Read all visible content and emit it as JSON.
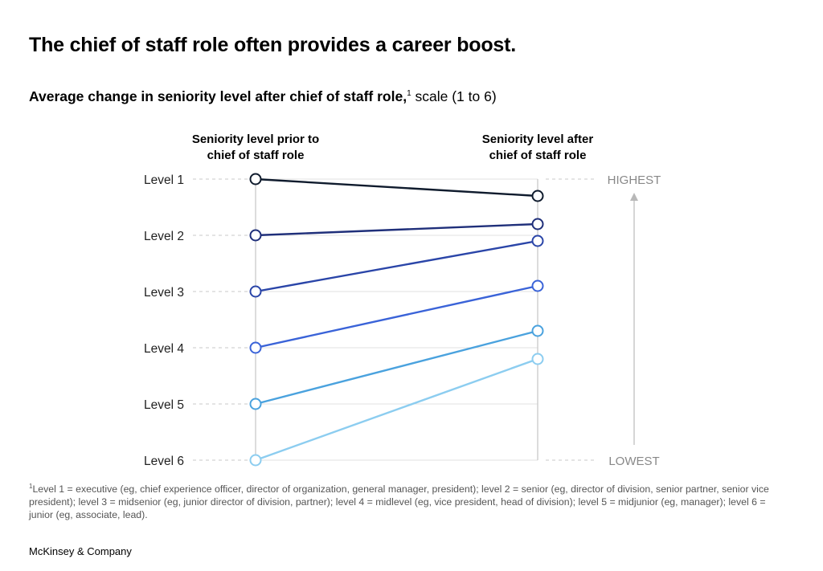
{
  "headline": "The chief of staff role often provides a career boost.",
  "subtitle": {
    "bold": "Average change in seniority level after chief of staff role,",
    "sup": "1",
    "light": " scale (1 to 6)"
  },
  "footnote": {
    "sup": "1",
    "text": "Level 1 = executive (eg, chief experience officer, director of organization, general manager, president); level 2 = senior (eg, director of division, senior partner, senior vice president); level 3 = midsenior (eg, junior director of division, partner); level 4 = midlevel (eg, vice president, head of division); level 5 = midjunior (eg, manager); level 6 = junior (eg, associate, lead)."
  },
  "brand": "McKinsey & Company",
  "chart_data": {
    "type": "line",
    "title": "Average change in seniority level after chief of staff role",
    "x": [
      "Seniority level prior to chief of staff role",
      "Seniority level after chief of staff role"
    ],
    "column_headers": {
      "before": [
        "Seniority level prior to",
        "chief of staff role"
      ],
      "after": [
        "Seniority level after",
        "chief of staff role"
      ]
    },
    "y_tick_labels": [
      "Level 1",
      "Level 2",
      "Level 3",
      "Level 4",
      "Level 5",
      "Level 6"
    ],
    "ylim": [
      1,
      6
    ],
    "y_inverted": true,
    "scale_labels": {
      "top": "HIGHEST",
      "bottom": "LOWEST"
    },
    "grid": true,
    "series": [
      {
        "values": [
          1,
          1.3
        ],
        "color": "#0f1b2d"
      },
      {
        "values": [
          2,
          1.8
        ],
        "color": "#1f2f7a"
      },
      {
        "values": [
          3,
          2.1
        ],
        "color": "#2a45a8"
      },
      {
        "values": [
          4,
          2.9
        ],
        "color": "#3a63d8"
      },
      {
        "values": [
          5,
          3.7
        ],
        "color": "#4aa2de"
      },
      {
        "values": [
          6,
          4.2
        ],
        "color": "#8ccdf0"
      }
    ]
  }
}
